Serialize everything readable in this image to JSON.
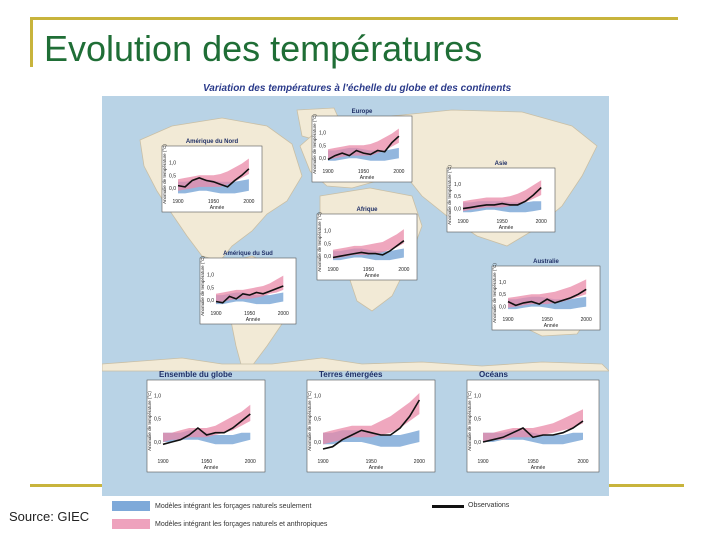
{
  "slide": {
    "title": "Evolution des températures",
    "source": "Source: GIEC"
  },
  "figure": {
    "title": "Variation des températures à l'échelle du globe et des continents"
  },
  "legend": {
    "natural": "Modèles intégrant les forçages naturels seulement",
    "anthro": "Modèles intégrant les forçages naturels et anthropiques",
    "observations": "Observations"
  },
  "colors": {
    "natural": "#6f9fd3",
    "anthro": "#e98aa8",
    "observations": "#111111",
    "frame": "#c8b43c",
    "title": "#1f6e36",
    "map_bg": "#b9d3e6",
    "land": "#f2ead6"
  },
  "axis_text": {
    "ylabel": "Anomalie de température (°C)",
    "xlabel": "Année"
  },
  "chart_data": [
    {
      "type": "line",
      "title": "Europe",
      "xlabel": "Année",
      "ylabel": "Anomalie de température (°C)",
      "x": [
        1900,
        1910,
        1920,
        1930,
        1940,
        1950,
        1960,
        1970,
        1980,
        1990,
        2000
      ],
      "observations": [
        -0.05,
        0.1,
        0.2,
        0.1,
        0.3,
        0.2,
        0.15,
        0.3,
        0.25,
        0.6,
        0.85
      ],
      "natural": [
        [
          -0.1,
          0.3
        ],
        [
          -0.1,
          0.3
        ],
        [
          -0.05,
          0.35
        ],
        [
          0.0,
          0.4
        ],
        [
          0.0,
          0.4
        ],
        [
          -0.05,
          0.35
        ],
        [
          -0.1,
          0.3
        ],
        [
          -0.1,
          0.3
        ],
        [
          -0.1,
          0.3
        ],
        [
          -0.05,
          0.35
        ],
        [
          0.0,
          0.4
        ]
      ],
      "anthro": [
        [
          -0.05,
          0.35
        ],
        [
          0.0,
          0.4
        ],
        [
          0.05,
          0.45
        ],
        [
          0.1,
          0.5
        ],
        [
          0.1,
          0.5
        ],
        [
          0.1,
          0.5
        ],
        [
          0.1,
          0.55
        ],
        [
          0.2,
          0.65
        ],
        [
          0.3,
          0.8
        ],
        [
          0.45,
          0.95
        ],
        [
          0.6,
          1.15
        ]
      ],
      "yticks": [
        0.0,
        0.5,
        1.0
      ],
      "xticks": [
        1900,
        1950,
        2000
      ],
      "ylim": [
        -0.3,
        1.4
      ],
      "xlim": [
        1900,
        2010
      ]
    },
    {
      "type": "line",
      "title": "Amérique du Nord",
      "xlabel": "Année",
      "ylabel": "Anomalie de température (°C)",
      "x": [
        1900,
        1910,
        1920,
        1930,
        1940,
        1950,
        1960,
        1970,
        1980,
        1990,
        2000
      ],
      "observations": [
        0.1,
        0.05,
        0.3,
        0.4,
        0.3,
        0.25,
        0.15,
        0.05,
        0.3,
        0.5,
        0.75
      ],
      "natural": [
        [
          -0.2,
          0.25
        ],
        [
          -0.2,
          0.25
        ],
        [
          -0.15,
          0.3
        ],
        [
          -0.1,
          0.35
        ],
        [
          -0.1,
          0.35
        ],
        [
          -0.15,
          0.3
        ],
        [
          -0.2,
          0.25
        ],
        [
          -0.2,
          0.25
        ],
        [
          -0.2,
          0.25
        ],
        [
          -0.15,
          0.3
        ],
        [
          -0.1,
          0.35
        ]
      ],
      "anthro": [
        [
          -0.1,
          0.35
        ],
        [
          -0.05,
          0.4
        ],
        [
          0.0,
          0.45
        ],
        [
          0.05,
          0.5
        ],
        [
          0.05,
          0.5
        ],
        [
          0.05,
          0.5
        ],
        [
          0.05,
          0.55
        ],
        [
          0.15,
          0.65
        ],
        [
          0.25,
          0.8
        ],
        [
          0.4,
          0.95
        ],
        [
          0.55,
          1.15
        ]
      ],
      "yticks": [
        0.0,
        0.5,
        1.0
      ],
      "xticks": [
        1900,
        1950,
        2000
      ],
      "ylim": [
        -0.3,
        1.4
      ],
      "xlim": [
        1900,
        2010
      ]
    },
    {
      "type": "line",
      "title": "Asie",
      "xlabel": "Année",
      "ylabel": "Anomalie de température (°C)",
      "x": [
        1900,
        1910,
        1920,
        1930,
        1940,
        1950,
        1960,
        1970,
        1980,
        1990,
        2000
      ],
      "observations": [
        0.0,
        0.05,
        0.1,
        0.15,
        0.15,
        0.2,
        0.15,
        0.15,
        0.3,
        0.55,
        0.85
      ],
      "natural": [
        [
          -0.15,
          0.25
        ],
        [
          -0.15,
          0.25
        ],
        [
          -0.1,
          0.3
        ],
        [
          -0.05,
          0.3
        ],
        [
          -0.05,
          0.3
        ],
        [
          -0.1,
          0.3
        ],
        [
          -0.15,
          0.25
        ],
        [
          -0.15,
          0.25
        ],
        [
          -0.15,
          0.25
        ],
        [
          -0.1,
          0.3
        ],
        [
          -0.05,
          0.3
        ]
      ],
      "anthro": [
        [
          -0.1,
          0.3
        ],
        [
          -0.05,
          0.35
        ],
        [
          0.0,
          0.4
        ],
        [
          0.05,
          0.45
        ],
        [
          0.05,
          0.45
        ],
        [
          0.05,
          0.45
        ],
        [
          0.1,
          0.5
        ],
        [
          0.15,
          0.6
        ],
        [
          0.25,
          0.75
        ],
        [
          0.4,
          0.95
        ],
        [
          0.55,
          1.15
        ]
      ],
      "yticks": [
        0.0,
        0.5,
        1.0
      ],
      "xticks": [
        1900,
        1950,
        2000
      ],
      "ylim": [
        -0.3,
        1.4
      ],
      "xlim": [
        1900,
        2010
      ]
    },
    {
      "type": "line",
      "title": "Afrique",
      "xlabel": "Année",
      "ylabel": "Anomalie de température (°C)",
      "x": [
        1900,
        1910,
        1920,
        1930,
        1940,
        1950,
        1960,
        1970,
        1980,
        1990,
        2000
      ],
      "observations": [
        -0.05,
        0.0,
        0.05,
        0.1,
        0.15,
        0.1,
        0.1,
        0.05,
        0.2,
        0.4,
        0.6
      ],
      "natural": [
        [
          -0.15,
          0.2
        ],
        [
          -0.15,
          0.2
        ],
        [
          -0.1,
          0.25
        ],
        [
          -0.05,
          0.3
        ],
        [
          -0.05,
          0.3
        ],
        [
          -0.1,
          0.25
        ],
        [
          -0.15,
          0.2
        ],
        [
          -0.15,
          0.2
        ],
        [
          -0.15,
          0.2
        ],
        [
          -0.1,
          0.25
        ],
        [
          -0.05,
          0.3
        ]
      ],
      "anthro": [
        [
          -0.1,
          0.25
        ],
        [
          -0.05,
          0.3
        ],
        [
          0.0,
          0.35
        ],
        [
          0.05,
          0.4
        ],
        [
          0.05,
          0.4
        ],
        [
          0.05,
          0.45
        ],
        [
          0.1,
          0.5
        ],
        [
          0.15,
          0.55
        ],
        [
          0.25,
          0.7
        ],
        [
          0.35,
          0.85
        ],
        [
          0.5,
          1.05
        ]
      ],
      "yticks": [
        0.0,
        0.5,
        1.0
      ],
      "xticks": [
        1900,
        1950,
        2000
      ],
      "ylim": [
        -0.3,
        1.4
      ],
      "xlim": [
        1900,
        2010
      ]
    },
    {
      "type": "line",
      "title": "Amérique du Sud",
      "xlabel": "Année",
      "ylabel": "Anomalie de température (°C)",
      "x": [
        1900,
        1910,
        1920,
        1930,
        1940,
        1950,
        1960,
        1970,
        1980,
        1990,
        2000
      ],
      "observations": [
        -0.05,
        -0.1,
        0.15,
        0.05,
        0.25,
        0.2,
        0.3,
        0.25,
        0.35,
        0.45,
        0.55
      ],
      "natural": [
        [
          -0.15,
          0.2
        ],
        [
          -0.15,
          0.2
        ],
        [
          -0.1,
          0.25
        ],
        [
          -0.05,
          0.3
        ],
        [
          -0.05,
          0.3
        ],
        [
          -0.1,
          0.25
        ],
        [
          -0.15,
          0.2
        ],
        [
          -0.15,
          0.2
        ],
        [
          -0.15,
          0.2
        ],
        [
          -0.1,
          0.25
        ],
        [
          -0.05,
          0.3
        ]
      ],
      "anthro": [
        [
          -0.1,
          0.25
        ],
        [
          -0.05,
          0.3
        ],
        [
          0.0,
          0.35
        ],
        [
          0.05,
          0.4
        ],
        [
          0.05,
          0.4
        ],
        [
          0.05,
          0.45
        ],
        [
          0.1,
          0.5
        ],
        [
          0.15,
          0.55
        ],
        [
          0.25,
          0.65
        ],
        [
          0.3,
          0.8
        ],
        [
          0.4,
          0.95
        ]
      ],
      "yticks": [
        0.0,
        0.5,
        1.0
      ],
      "xticks": [
        1900,
        1950,
        2000
      ],
      "ylim": [
        -0.3,
        1.4
      ],
      "xlim": [
        1900,
        2010
      ]
    },
    {
      "type": "line",
      "title": "Australie",
      "xlabel": "Année",
      "ylabel": "Anomalie de température (°C)",
      "x": [
        1900,
        1910,
        1920,
        1930,
        1940,
        1950,
        1960,
        1970,
        1980,
        1990,
        2000
      ],
      "observations": [
        0.2,
        0.05,
        0.15,
        0.2,
        0.1,
        0.3,
        0.15,
        0.25,
        0.35,
        0.5,
        0.7
      ],
      "natural": [
        [
          -0.1,
          0.3
        ],
        [
          -0.1,
          0.3
        ],
        [
          -0.05,
          0.35
        ],
        [
          0.0,
          0.4
        ],
        [
          0.0,
          0.4
        ],
        [
          -0.05,
          0.35
        ],
        [
          -0.1,
          0.3
        ],
        [
          -0.1,
          0.3
        ],
        [
          -0.1,
          0.3
        ],
        [
          -0.05,
          0.35
        ],
        [
          0.0,
          0.4
        ]
      ],
      "anthro": [
        [
          -0.05,
          0.35
        ],
        [
          0.0,
          0.4
        ],
        [
          0.05,
          0.45
        ],
        [
          0.1,
          0.5
        ],
        [
          0.1,
          0.5
        ],
        [
          0.1,
          0.55
        ],
        [
          0.15,
          0.6
        ],
        [
          0.2,
          0.7
        ],
        [
          0.3,
          0.8
        ],
        [
          0.4,
          0.95
        ],
        [
          0.5,
          1.1
        ]
      ],
      "yticks": [
        0.0,
        0.5,
        1.0
      ],
      "xticks": [
        1900,
        1950,
        2000
      ],
      "ylim": [
        -0.3,
        1.4
      ],
      "xlim": [
        1900,
        2010
      ]
    },
    {
      "type": "line",
      "title": "Ensemble du globe",
      "xlabel": "Année",
      "ylabel": "Anomalie de température (°C)",
      "x": [
        1900,
        1910,
        1920,
        1930,
        1940,
        1950,
        1960,
        1970,
        1980,
        1990,
        2000
      ],
      "observations": [
        -0.05,
        0.0,
        0.05,
        0.15,
        0.3,
        0.15,
        0.2,
        0.2,
        0.3,
        0.45,
        0.6
      ],
      "natural": [
        [
          0.0,
          0.2
        ],
        [
          0.0,
          0.2
        ],
        [
          0.05,
          0.2
        ],
        [
          0.05,
          0.25
        ],
        [
          0.05,
          0.25
        ],
        [
          0.0,
          0.2
        ],
        [
          -0.05,
          0.15
        ],
        [
          -0.05,
          0.15
        ],
        [
          -0.05,
          0.15
        ],
        [
          0.0,
          0.2
        ],
        [
          0.05,
          0.2
        ]
      ],
      "anthro": [
        [
          0.0,
          0.2
        ],
        [
          0.05,
          0.2
        ],
        [
          0.05,
          0.25
        ],
        [
          0.1,
          0.3
        ],
        [
          0.1,
          0.3
        ],
        [
          0.1,
          0.3
        ],
        [
          0.15,
          0.35
        ],
        [
          0.2,
          0.45
        ],
        [
          0.25,
          0.55
        ],
        [
          0.35,
          0.65
        ],
        [
          0.45,
          0.8
        ]
      ],
      "yticks": [
        0.0,
        0.5,
        1.0
      ],
      "xticks": [
        1900,
        1950,
        2000
      ],
      "ylim": [
        -0.3,
        1.2
      ],
      "xlim": [
        1900,
        2010
      ]
    },
    {
      "type": "line",
      "title": "Terres émergées",
      "xlabel": "Année",
      "ylabel": "Anomalie de température (°C)",
      "x": [
        1900,
        1910,
        1920,
        1930,
        1940,
        1950,
        1960,
        1970,
        1980,
        1990,
        2000
      ],
      "observations": [
        -0.15,
        -0.1,
        0.05,
        0.15,
        0.25,
        0.2,
        0.15,
        0.15,
        0.3,
        0.55,
        0.9
      ],
      "natural": [
        [
          -0.05,
          0.2
        ],
        [
          -0.05,
          0.2
        ],
        [
          0.0,
          0.25
        ],
        [
          0.0,
          0.25
        ],
        [
          0.0,
          0.25
        ],
        [
          -0.05,
          0.2
        ],
        [
          -0.1,
          0.15
        ],
        [
          -0.1,
          0.15
        ],
        [
          -0.1,
          0.15
        ],
        [
          -0.05,
          0.2
        ],
        [
          0.0,
          0.25
        ]
      ],
      "anthro": [
        [
          -0.05,
          0.2
        ],
        [
          0.0,
          0.25
        ],
        [
          0.05,
          0.3
        ],
        [
          0.1,
          0.35
        ],
        [
          0.1,
          0.35
        ],
        [
          0.1,
          0.35
        ],
        [
          0.15,
          0.45
        ],
        [
          0.2,
          0.55
        ],
        [
          0.3,
          0.7
        ],
        [
          0.45,
          0.85
        ],
        [
          0.6,
          1.05
        ]
      ],
      "yticks": [
        0.0,
        0.5,
        1.0
      ],
      "xticks": [
        1900,
        1950,
        2000
      ],
      "ylim": [
        -0.3,
        1.2
      ],
      "xlim": [
        1900,
        2010
      ]
    },
    {
      "type": "line",
      "title": "Océans",
      "xlabel": "Année",
      "ylabel": "Anomalie de température (°C)",
      "x": [
        1900,
        1910,
        1920,
        1930,
        1940,
        1950,
        1960,
        1970,
        1980,
        1990,
        2000
      ],
      "observations": [
        0.0,
        0.05,
        0.1,
        0.2,
        0.3,
        0.1,
        0.15,
        0.15,
        0.2,
        0.3,
        0.45
      ],
      "natural": [
        [
          0.0,
          0.2
        ],
        [
          0.0,
          0.2
        ],
        [
          0.05,
          0.2
        ],
        [
          0.05,
          0.25
        ],
        [
          0.05,
          0.25
        ],
        [
          0.0,
          0.2
        ],
        [
          -0.05,
          0.15
        ],
        [
          -0.05,
          0.15
        ],
        [
          -0.05,
          0.15
        ],
        [
          0.0,
          0.2
        ],
        [
          0.05,
          0.2
        ]
      ],
      "anthro": [
        [
          0.0,
          0.2
        ],
        [
          0.05,
          0.2
        ],
        [
          0.05,
          0.25
        ],
        [
          0.1,
          0.3
        ],
        [
          0.1,
          0.3
        ],
        [
          0.1,
          0.3
        ],
        [
          0.15,
          0.35
        ],
        [
          0.2,
          0.4
        ],
        [
          0.25,
          0.5
        ],
        [
          0.3,
          0.6
        ],
        [
          0.4,
          0.7
        ]
      ],
      "yticks": [
        0.0,
        0.5,
        1.0
      ],
      "xticks": [
        1900,
        1950,
        2000
      ],
      "ylim": [
        -0.3,
        1.2
      ],
      "xlim": [
        1900,
        2010
      ]
    }
  ]
}
